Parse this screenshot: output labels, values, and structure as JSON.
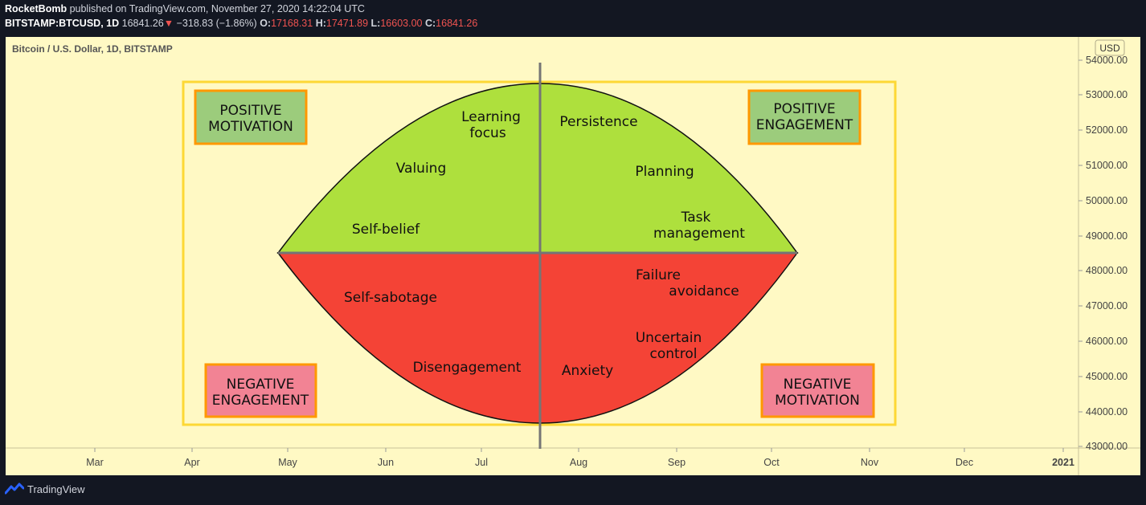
{
  "header": {
    "author": "RocketBomb",
    "published_text": "published on TradingView.com, November 27, 2020 14:22:04 UTC",
    "symbol": "BITSTAMP:BTCUSD, 1D",
    "last_price": "16841.26",
    "down_arrow": "▼",
    "change": "−318.83 (−1.86%)",
    "open_label": "O:",
    "open": "17168.31",
    "high_label": "H:",
    "high": "17471.89",
    "low_label": "L:",
    "low": "16603.00",
    "close_label": "C:",
    "close": "16841.26"
  },
  "chart": {
    "legend_title": "Bitcoin / U.S. Dollar, 1D, BITSTAMP",
    "currency": "USD",
    "y_tick_labels": [
      "54000.00",
      "53000.00",
      "52000.00",
      "51000.00",
      "50000.00",
      "49000.00",
      "48000.00",
      "47000.00",
      "46000.00",
      "45000.00",
      "44000.00",
      "43000.00"
    ],
    "x_tick_labels": [
      "Mar",
      "Apr",
      "May",
      "Jun",
      "Jul",
      "Aug",
      "Sep",
      "Oct",
      "Nov",
      "Dec",
      "2021"
    ]
  },
  "diagram": {
    "quadrant_labels": {
      "positive_motivation": [
        "POSITIVE",
        "MOTIVATION"
      ],
      "positive_engagement": [
        "POSITIVE",
        "ENGAGEMENT"
      ],
      "negative_engagement": [
        "NEGATIVE",
        "ENGAGEMENT"
      ],
      "negative_motivation": [
        "NEGATIVE",
        "MOTIVATION"
      ]
    },
    "positive_words": {
      "learning_focus": [
        "Learning",
        "focus"
      ],
      "valuing": "Valuing",
      "self_belief": "Self-belief",
      "persistence": "Persistence",
      "planning": "Planning",
      "task_management": [
        "Task",
        "management"
      ]
    },
    "negative_words": {
      "self_sabotage": "Self-sabotage",
      "disengagement": "Disengagement",
      "failure_avoidance": [
        "Failure",
        "avoidance"
      ],
      "uncertain_control": [
        "Uncertain",
        "control"
      ],
      "anxiety": "Anxiety"
    },
    "colors": {
      "background": "#fff9c4",
      "positive_fill": "#aee03d",
      "negative_fill": "#f44336",
      "frame": "#fdd835",
      "label_border": "#ff9800",
      "positive_label_fill": "#9ccc7c",
      "negative_label_fill": "#f28394",
      "divider": "#757575"
    }
  },
  "footer": {
    "brand": "TradingView"
  }
}
